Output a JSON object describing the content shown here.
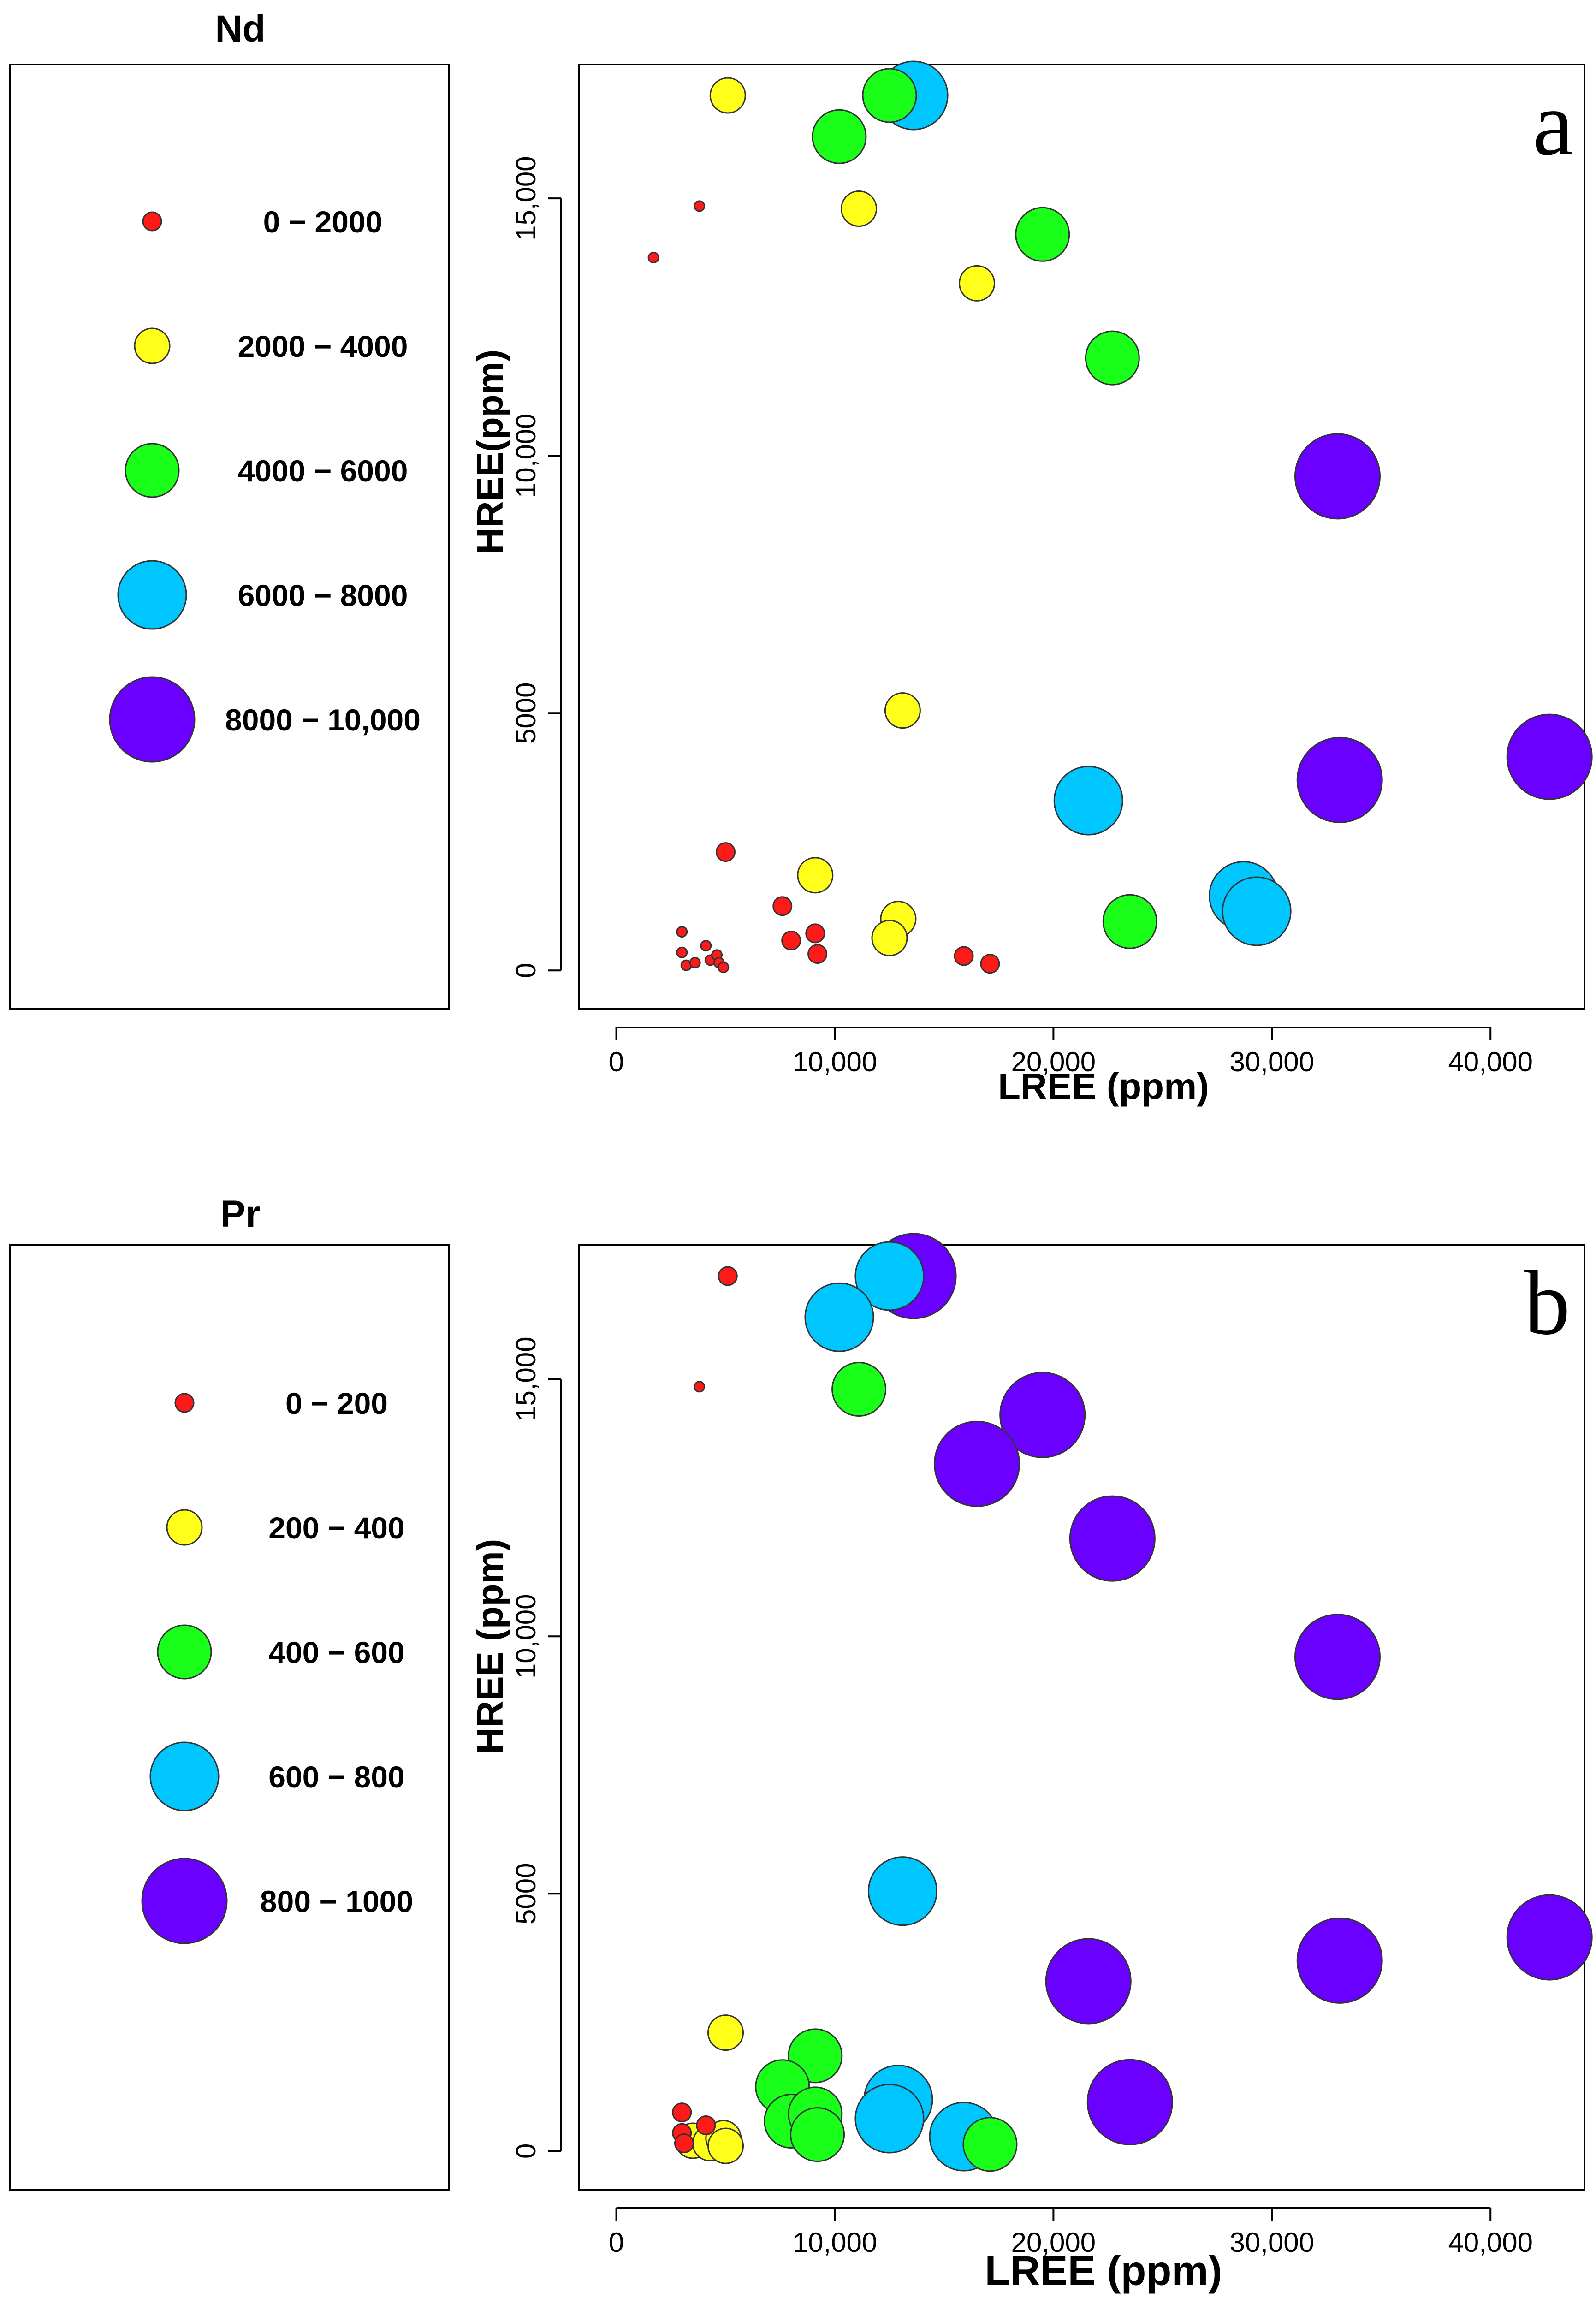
{
  "chart_data": [
    {
      "type": "scatter",
      "panel_label": "a",
      "legend_title": "Nd",
      "xlabel": "LREE (ppm)",
      "ylabel": "HREE(ppm)",
      "xlim": [
        -1700,
        44300
      ],
      "ylim": [
        -750,
        17600
      ],
      "xticks": [
        0,
        10000,
        20000,
        30000,
        40000
      ],
      "xtick_labels": [
        "0",
        "10,000",
        "20,000",
        "30,000",
        "40,000"
      ],
      "yticks": [
        0,
        5000,
        10000,
        15000
      ],
      "ytick_labels": [
        "0",
        "5000",
        "10,000",
        "15,000"
      ],
      "legend": [
        {
          "label": "0 − 2000",
          "color": "#ff1a1a",
          "size": 1
        },
        {
          "label": "2000 − 4000",
          "color": "#ffff1a",
          "size": 2
        },
        {
          "label": "4000 − 6000",
          "color": "#1aff1a",
          "size": 3
        },
        {
          "label": "6000 − 8000",
          "color": "#00c6ff",
          "size": 4
        },
        {
          "label": "8000 − 10,000",
          "color": "#6a00ff",
          "size": 5
        }
      ],
      "points": [
        {
          "x": 1700,
          "y": 13850,
          "class": 1,
          "small": true
        },
        {
          "x": 3800,
          "y": 14850,
          "class": 1,
          "small": true
        },
        {
          "x": 3000,
          "y": 750,
          "class": 1,
          "small": true
        },
        {
          "x": 3000,
          "y": 350,
          "class": 1,
          "small": true
        },
        {
          "x": 3200,
          "y": 100,
          "class": 1,
          "small": true
        },
        {
          "x": 3600,
          "y": 150,
          "class": 1,
          "small": true
        },
        {
          "x": 4100,
          "y": 480,
          "class": 1,
          "small": true
        },
        {
          "x": 4300,
          "y": 200,
          "class": 1,
          "small": true
        },
        {
          "x": 4600,
          "y": 300,
          "class": 1,
          "small": true
        },
        {
          "x": 4700,
          "y": 150,
          "class": 1,
          "small": true
        },
        {
          "x": 4900,
          "y": 60,
          "class": 1,
          "small": true
        },
        {
          "x": 5000,
          "y": 2300,
          "class": 1
        },
        {
          "x": 7600,
          "y": 1250,
          "class": 1
        },
        {
          "x": 8000,
          "y": 580,
          "class": 1
        },
        {
          "x": 9100,
          "y": 720,
          "class": 1
        },
        {
          "x": 9200,
          "y": 320,
          "class": 1
        },
        {
          "x": 15900,
          "y": 280,
          "class": 1
        },
        {
          "x": 17100,
          "y": 130,
          "class": 1
        },
        {
          "x": 5100,
          "y": 17000,
          "class": 2
        },
        {
          "x": 11100,
          "y": 14800,
          "class": 2
        },
        {
          "x": 16500,
          "y": 13350,
          "class": 2
        },
        {
          "x": 13100,
          "y": 5050,
          "class": 2
        },
        {
          "x": 9100,
          "y": 1850,
          "class": 2
        },
        {
          "x": 12900,
          "y": 1000,
          "class": 2
        },
        {
          "x": 12500,
          "y": 630,
          "class": 2
        },
        {
          "x": 12500,
          "y": 17000,
          "class": 3
        },
        {
          "x": 10200,
          "y": 16200,
          "class": 3
        },
        {
          "x": 19500,
          "y": 14300,
          "class": 3
        },
        {
          "x": 22700,
          "y": 11900,
          "class": 3
        },
        {
          "x": 23500,
          "y": 950,
          "class": 3
        },
        {
          "x": 13600,
          "y": 17000,
          "class": 4
        },
        {
          "x": 21600,
          "y": 3300,
          "class": 4
        },
        {
          "x": 28700,
          "y": 1450,
          "class": 4
        },
        {
          "x": 29300,
          "y": 1150,
          "class": 4
        },
        {
          "x": 33000,
          "y": 9600,
          "class": 5
        },
        {
          "x": 33100,
          "y": 3700,
          "class": 5
        },
        {
          "x": 42700,
          "y": 4150,
          "class": 5
        }
      ]
    },
    {
      "type": "scatter",
      "panel_label": "b",
      "legend_title": "Pr",
      "xlabel": "LREE (ppm)",
      "ylabel": "HREE (ppm)",
      "xlim": [
        -1700,
        44300
      ],
      "ylim": [
        -750,
        17600
      ],
      "xticks": [
        0,
        10000,
        20000,
        30000,
        40000
      ],
      "xtick_labels": [
        "0",
        "10,000",
        "20,000",
        "30,000",
        "40,000"
      ],
      "yticks": [
        0,
        5000,
        10000,
        15000
      ],
      "ytick_labels": [
        "0",
        "5000",
        "10,000",
        "15,000"
      ],
      "legend": [
        {
          "label": "0 − 200",
          "color": "#ff1a1a",
          "size": 1
        },
        {
          "label": "200 − 400",
          "color": "#ffff1a",
          "size": 2
        },
        {
          "label": "400 − 600",
          "color": "#1aff1a",
          "size": 3
        },
        {
          "label": "600 − 800",
          "color": "#00c6ff",
          "size": 4
        },
        {
          "label": "800 − 1000",
          "color": "#6a00ff",
          "size": 5
        }
      ],
      "points": [
        {
          "x": 5100,
          "y": 17000,
          "class": 1
        },
        {
          "x": 3800,
          "y": 14850,
          "class": 1,
          "small": true
        },
        {
          "x": 3000,
          "y": 750,
          "class": 1
        },
        {
          "x": 3000,
          "y": 350,
          "class": 1
        },
        {
          "x": 3100,
          "y": 150,
          "class": 1
        },
        {
          "x": 4100,
          "y": 500,
          "class": 1
        },
        {
          "x": 3500,
          "y": 200,
          "class": 2
        },
        {
          "x": 4300,
          "y": 150,
          "class": 2
        },
        {
          "x": 4900,
          "y": 250,
          "class": 2
        },
        {
          "x": 5000,
          "y": 100,
          "class": 2
        },
        {
          "x": 5000,
          "y": 2300,
          "class": 2
        },
        {
          "x": 11100,
          "y": 14800,
          "class": 3
        },
        {
          "x": 9100,
          "y": 1850,
          "class": 3
        },
        {
          "x": 7600,
          "y": 1250,
          "class": 3
        },
        {
          "x": 8000,
          "y": 580,
          "class": 3
        },
        {
          "x": 9100,
          "y": 720,
          "class": 3
        },
        {
          "x": 9200,
          "y": 320,
          "class": 3
        },
        {
          "x": 17100,
          "y": 130,
          "class": 3
        },
        {
          "x": 12500,
          "y": 17000,
          "class": 4
        },
        {
          "x": 10200,
          "y": 16200,
          "class": 4
        },
        {
          "x": 13100,
          "y": 5050,
          "class": 4
        },
        {
          "x": 12900,
          "y": 1000,
          "class": 4
        },
        {
          "x": 12500,
          "y": 630,
          "class": 4
        },
        {
          "x": 15900,
          "y": 280,
          "class": 4
        },
        {
          "x": 13600,
          "y": 17000,
          "class": 5
        },
        {
          "x": 19500,
          "y": 14300,
          "class": 5
        },
        {
          "x": 16500,
          "y": 13350,
          "class": 5
        },
        {
          "x": 22700,
          "y": 11900,
          "class": 5
        },
        {
          "x": 33000,
          "y": 9600,
          "class": 5
        },
        {
          "x": 21600,
          "y": 3300,
          "class": 5
        },
        {
          "x": 33100,
          "y": 3700,
          "class": 5
        },
        {
          "x": 42700,
          "y": 4150,
          "class": 5
        },
        {
          "x": 23500,
          "y": 950,
          "class": 5
        }
      ]
    }
  ]
}
